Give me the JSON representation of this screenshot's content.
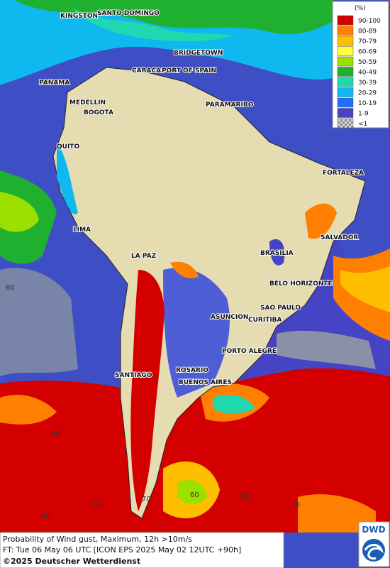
{
  "legend": {
    "title": "(%)",
    "items": [
      {
        "label": "90-100",
        "color": "#d40000"
      },
      {
        "label": "80-89",
        "color": "#ff7f00"
      },
      {
        "label": "70-79",
        "color": "#ffbf00"
      },
      {
        "label": "60-69",
        "color": "#ffff40"
      },
      {
        "label": "50-59",
        "color": "#9ce000"
      },
      {
        "label": "40-49",
        "color": "#20b030"
      },
      {
        "label": "30-39",
        "color": "#20d8b0"
      },
      {
        "label": "20-29",
        "color": "#10b8f0"
      },
      {
        "label": "10-19",
        "color": "#2070ff"
      },
      {
        "label": "1-9",
        "color": "#4444c4"
      },
      {
        "label": "<1",
        "color": "#b0b0b0"
      }
    ]
  },
  "cities": [
    "KINGSTON",
    "SANTO DOMINGO",
    "BRIDGETOWN",
    "CARACAS",
    "PORT OF SPAIN",
    "PANAMA",
    "MEDELLIN",
    "BOGOTA",
    "PARAMARIBO",
    "QUITO",
    "FORTALEZA",
    "LIMA",
    "SALVADOR",
    "LA PAZ",
    "BRASILIA",
    "BELO HORIZONTE",
    "SAO PAULO",
    "ASUNCION",
    "CURITIBA",
    "PORTO ALEGRE",
    "ROSARIO",
    "BUENOS AIRES",
    "SANTIAGO"
  ],
  "grid_labels": [
    "40",
    "50",
    "70",
    "60",
    "50",
    "40",
    "40",
    "60"
  ],
  "footer": {
    "line1": "Probability of Wind gust, Maximum, 12h >10m/s",
    "line2": "FT: Tue 06 May 06 UTC [ICON EPS 2025 May 02 12UTC +90h]",
    "line3": "©2025 Deutscher Wetterdienst"
  },
  "logo": "DWD"
}
